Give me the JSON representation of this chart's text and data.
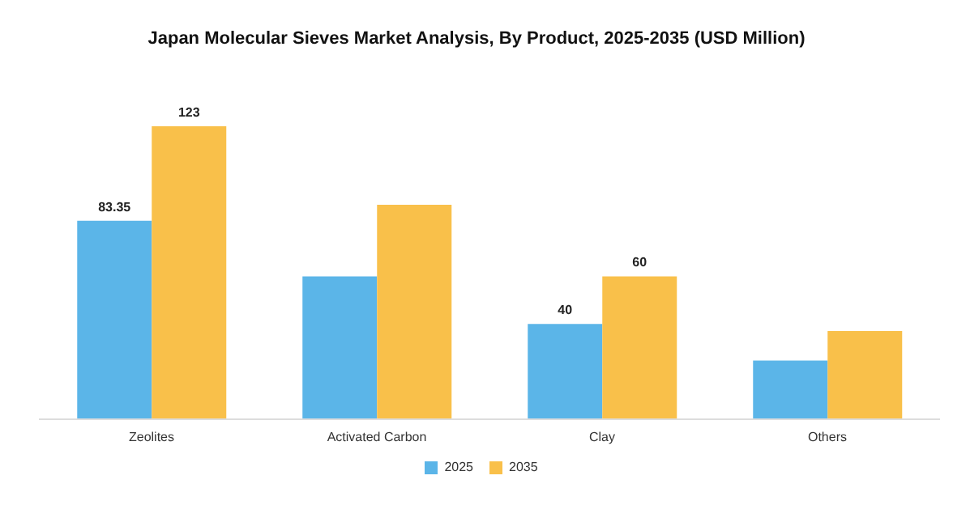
{
  "chart_data": {
    "type": "bar",
    "title": "Japan Molecular Sieves Market Analysis, By Product, 2025-2035 (USD Million)",
    "categories": [
      "Zeolites",
      "Activated Carbon",
      "Clay",
      "Others"
    ],
    "series": [
      {
        "name": "2025",
        "color": "#5bb5e8",
        "values": [
          83.35,
          60,
          40,
          24.6
        ],
        "value_labels": [
          "83.35",
          null,
          "40",
          null
        ]
      },
      {
        "name": "2035",
        "color": "#f9c04a",
        "values": [
          123,
          90,
          60,
          37
        ],
        "value_labels": [
          "123",
          null,
          "60",
          null
        ]
      }
    ],
    "legend": "bottom",
    "grid": false
  }
}
